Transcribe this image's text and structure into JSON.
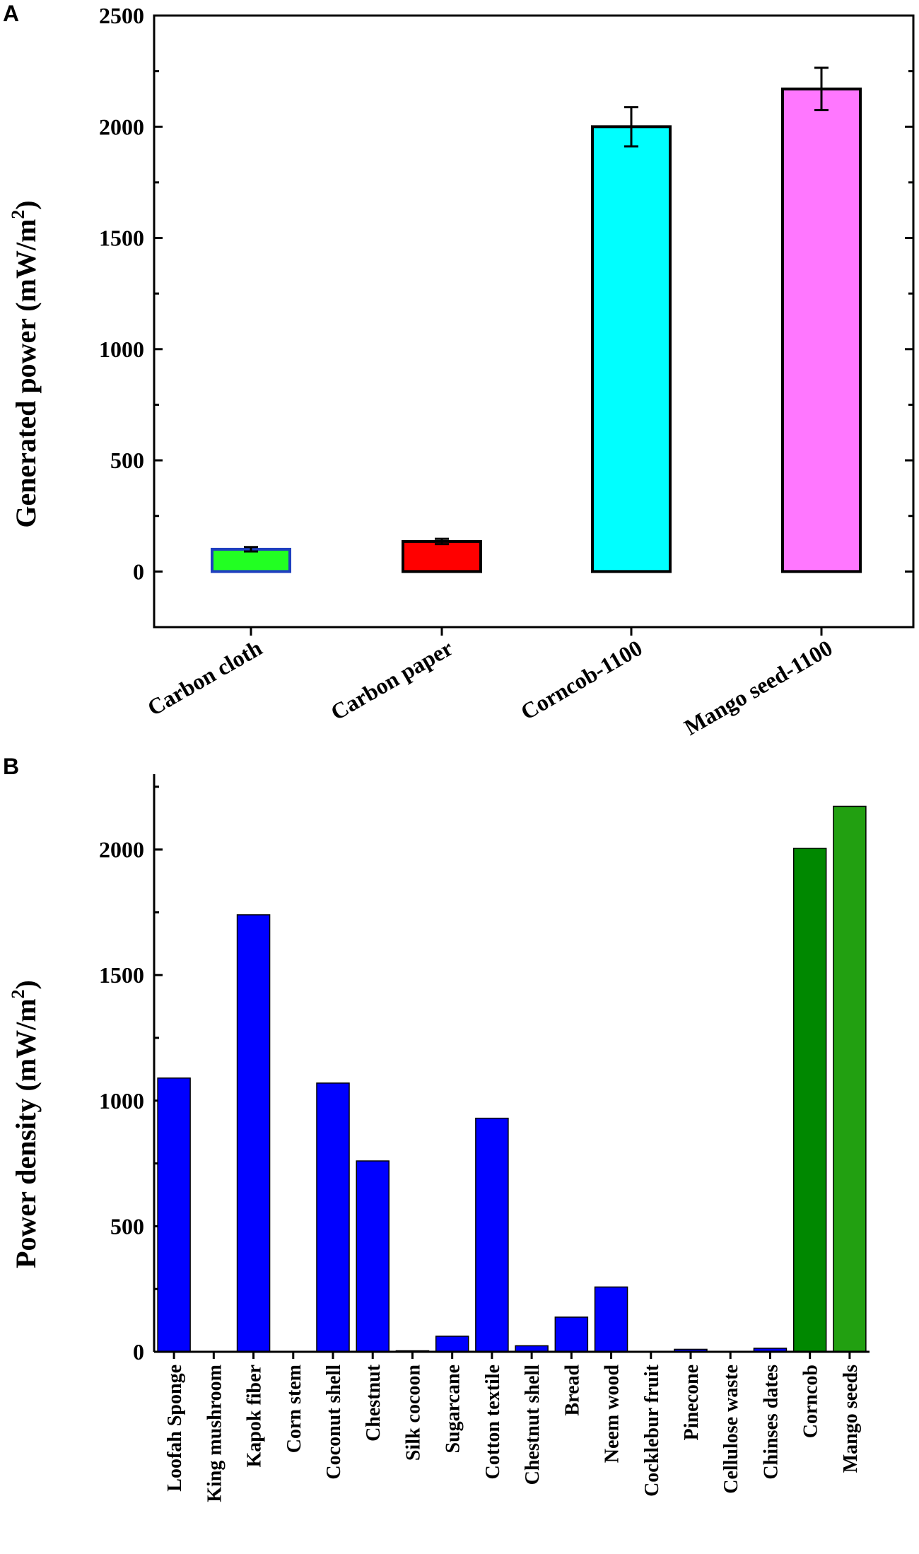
{
  "chart_data": [
    {
      "panel": "A",
      "type": "bar",
      "ylabel": "Generated power (mW/m",
      "ylabel_sup": "2",
      "ylabel_end": ")",
      "ylim": [
        -250,
        2500
      ],
      "yticks": [
        0,
        500,
        1000,
        1500,
        2000,
        2500
      ],
      "ytick_labels": [
        "0",
        "500",
        "1000",
        "1500",
        "2000",
        "2500"
      ],
      "categories": [
        "Carbon cloth",
        "Carbon paper",
        "Corncob-1100",
        "Mango seed-1100"
      ],
      "values": [
        100,
        135,
        2000,
        2170
      ],
      "errors": [
        10,
        12,
        88,
        95
      ],
      "colors": [
        "#22ff22",
        "#ff0000",
        "#00ffff",
        "#ff77ff"
      ],
      "edge_colors": [
        "#1f3fbf",
        "#000000",
        "#000000",
        "#000000"
      ]
    },
    {
      "panel": "B",
      "type": "bar",
      "ylabel": "Power density (mW/m",
      "ylabel_sup": "2",
      "ylabel_end": ")",
      "ylim": [
        0,
        2300
      ],
      "yticks": [
        0,
        500,
        1000,
        1500,
        2000
      ],
      "ytick_labels": [
        "0",
        "500",
        "1000",
        "1500",
        "2000"
      ],
      "categories": [
        "Loofah Sponge",
        "King mushroom",
        "Kapok fiber",
        "Corn stem",
        "Coconut shell",
        "Chestnut",
        "Silk cocoon",
        "Sugarcane",
        "Cotton textile",
        "Chestnut shell",
        "Bread",
        "Neem wood",
        "Cocklebur fruit",
        "Pinecone",
        "Cellulose waste",
        "Chinses dates",
        "Corncob",
        "Mango seeds"
      ],
      "values": [
        1090,
        2,
        1740,
        2,
        1070,
        760,
        4,
        62,
        930,
        24,
        138,
        258,
        2,
        10,
        2,
        14,
        2005,
        2172
      ],
      "colors": [
        "#0000ff",
        "#0000ff",
        "#0000ff",
        "#0000ff",
        "#0000ff",
        "#0000ff",
        "#0000ff",
        "#0000ff",
        "#0000ff",
        "#0000ff",
        "#0000ff",
        "#0000ff",
        "#0000ff",
        "#0000ff",
        "#0000ff",
        "#0000ff",
        "#008800",
        "#22a011"
      ]
    }
  ]
}
